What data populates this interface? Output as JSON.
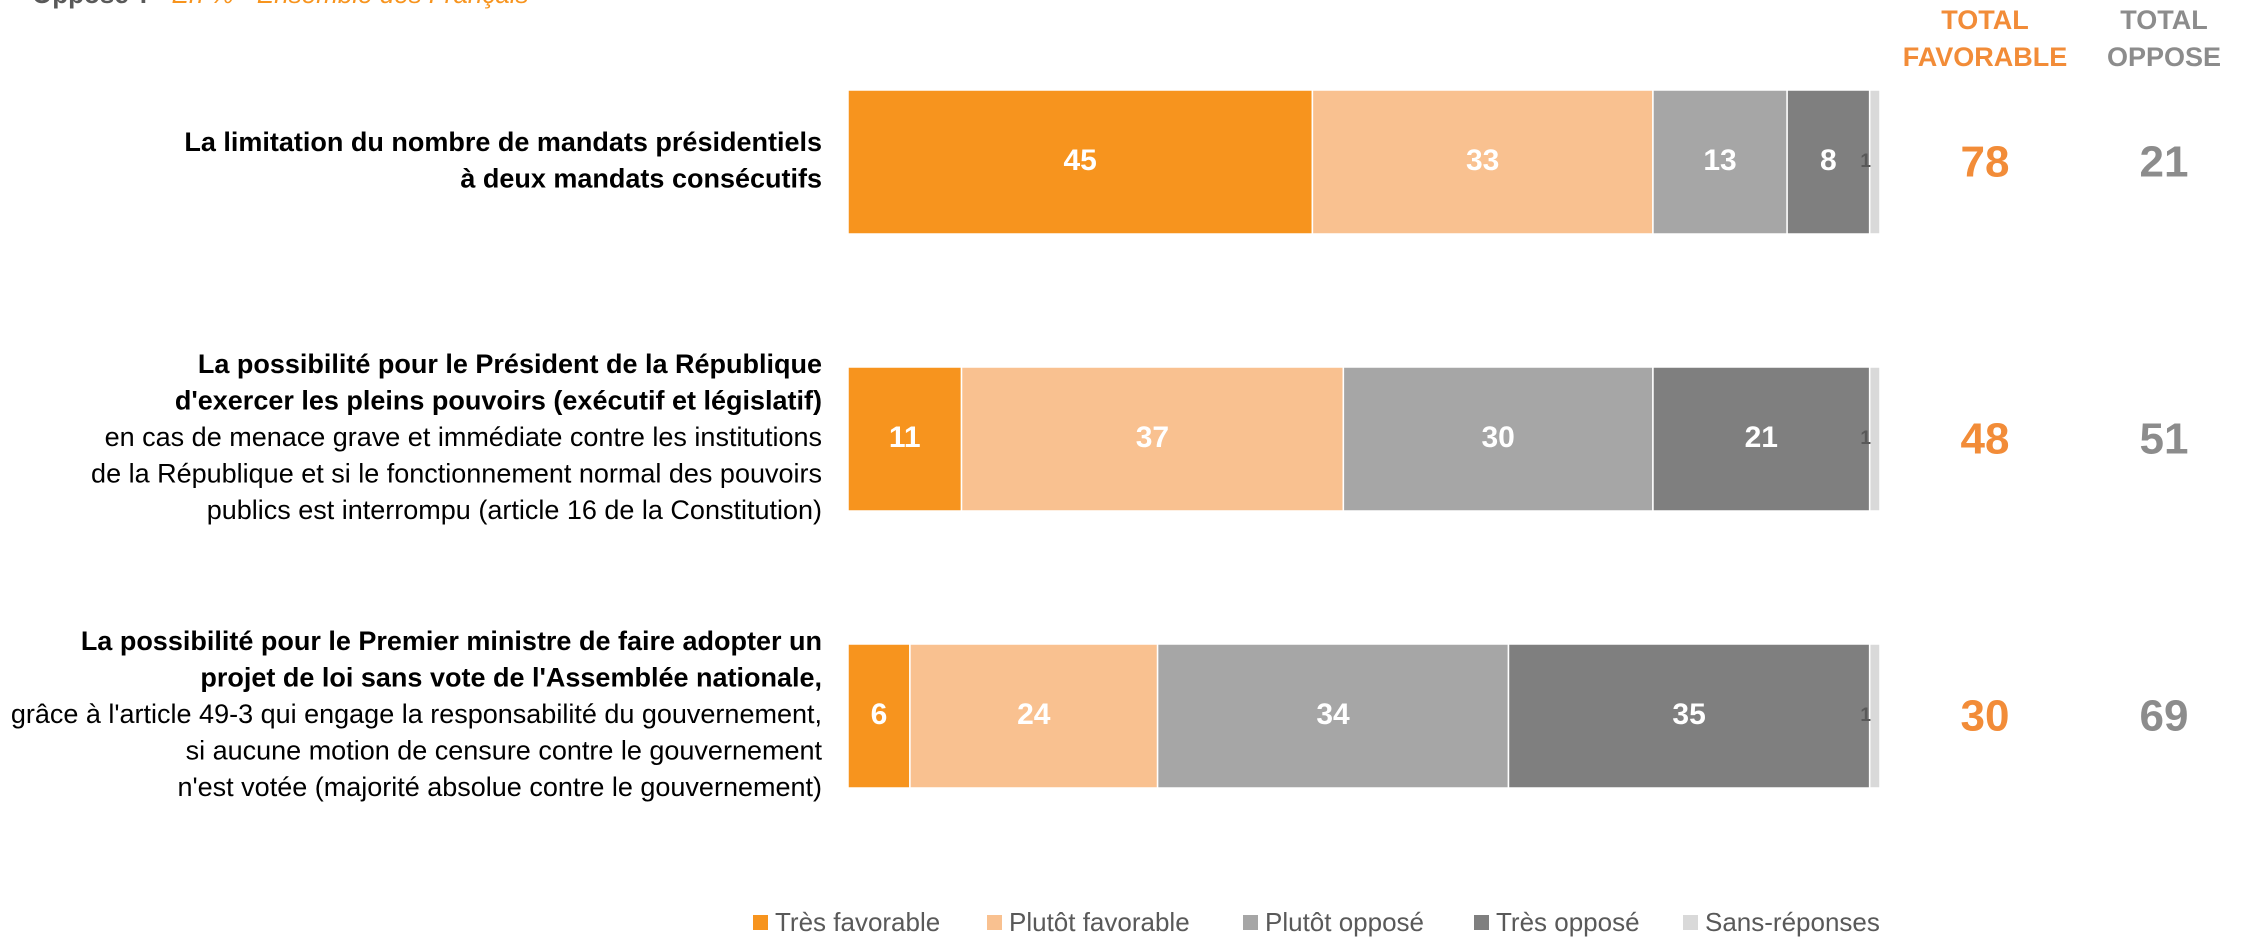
{
  "header": {
    "question": "Opposé ?",
    "subtitle": "– En % - Ensemble des Français"
  },
  "chart_data": {
    "type": "stacked-bar-horizontal",
    "xlim": [
      0,
      100
    ],
    "categories": [
      {
        "title": [
          "La limitation du nombre de mandats présidentiels",
          "à deux mandats consécutifs"
        ],
        "detail": []
      },
      {
        "title": [
          "La possibilité pour le Président de la République",
          "d'exercer les pleins pouvoirs (exécutif et législatif)"
        ],
        "detail": [
          "en cas de menace grave et immédiate contre les institutions",
          "de la République et si le fonctionnement normal des pouvoirs",
          "publics est interrompu (article 16 de la Constitution)"
        ]
      },
      {
        "title": [
          "La possibilité pour le Premier ministre de faire adopter un",
          "projet de loi sans vote de l'Assemblée nationale,"
        ],
        "detail": [
          "grâce à l'article 49-3 qui engage la responsabilité du gouvernement,",
          "si aucune motion de censure contre le gouvernement",
          "n'est votée (majorité absolue contre le gouvernement)"
        ]
      }
    ],
    "series": [
      {
        "name": "Très favorable",
        "color": "#f7941e",
        "values": [
          45,
          11,
          6
        ]
      },
      {
        "name": "Plutôt favorable",
        "color": "#f9c190",
        "values": [
          33,
          37,
          24
        ]
      },
      {
        "name": "Plutôt opposé",
        "color": "#a6a6a6",
        "values": [
          13,
          30,
          34
        ]
      },
      {
        "name": "Très opposé",
        "color": "#7f7f7f",
        "values": [
          8,
          21,
          35
        ]
      },
      {
        "name": "Sans-réponses",
        "color": "#d9d9d9",
        "values": [
          1,
          1,
          1
        ]
      }
    ],
    "totals": [
      {
        "label": [
          "TOTAL",
          "FAVORABLE"
        ],
        "color": "#f28c38",
        "values": [
          78,
          48,
          30
        ]
      },
      {
        "label": [
          "TOTAL",
          "OPPOSE"
        ],
        "color": "#8c8c8c",
        "values": [
          21,
          51,
          69
        ]
      }
    ],
    "legend": "bottom"
  }
}
